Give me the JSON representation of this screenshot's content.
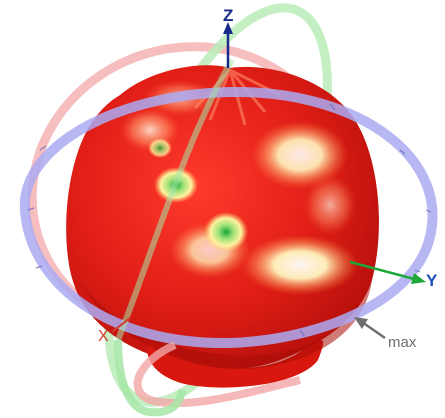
{
  "axes": {
    "z_label": "Z",
    "y_label": "Y",
    "x_label": "X"
  },
  "marker": {
    "max_label": "max"
  },
  "colors": {
    "ring_xy": "#a8a8f0",
    "ring_xz": "#f2a6a6",
    "ring_yz": "#a6e6a6",
    "pattern_main": "#e8221a",
    "pattern_highlight": "#fff6c8",
    "pattern_dip": "#3fbf3f",
    "axis_z": "#1a2a8a",
    "axis_y": "#1fa83a",
    "axis_x": "#d23a2a"
  },
  "icons": {
    "max_marker": "arrow-icon"
  }
}
